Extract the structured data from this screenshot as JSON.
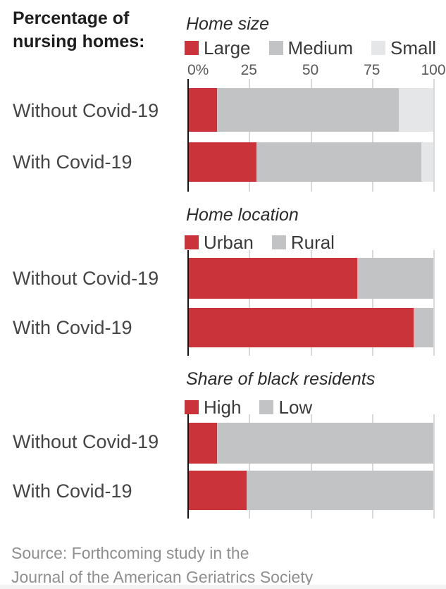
{
  "header": {
    "line1": "Percentage of",
    "line2": "nursing homes:"
  },
  "colors": {
    "red": "#cb333b",
    "medium_gray": "#c2c3c5",
    "light_gray": "#e4e6e8",
    "axis_line": "#141414",
    "gridline": "#d9d9db",
    "title_text": "#1d1d1d",
    "label_text": "#454545",
    "axis_text": "#5a5a5a",
    "source_text": "#8f8f8f"
  },
  "source": {
    "line1": "Source: Forthcoming study in the",
    "line2": "Journal of the American Geriatrics Society"
  },
  "chart_data": [
    {
      "type": "bar",
      "stacked": true,
      "orientation": "horizontal",
      "title": "Home size",
      "categories": [
        "Without Covid-19",
        "With Covid-19"
      ],
      "series": [
        {
          "name": "Large",
          "color": "#cb333b",
          "values": [
            12,
            28
          ]
        },
        {
          "name": "Medium",
          "color": "#c2c3c5",
          "values": [
            74,
            67
          ]
        },
        {
          "name": "Small",
          "color": "#e4e6e8",
          "values": [
            14,
            5
          ]
        }
      ],
      "xlim": [
        0,
        100
      ],
      "x_ticks": [
        0,
        25,
        50,
        75,
        100
      ],
      "x_tick_labels": [
        "0%",
        "25",
        "50",
        "75",
        "100"
      ],
      "legend_position": "top",
      "grid": "vertical-ticks"
    },
    {
      "type": "bar",
      "stacked": true,
      "orientation": "horizontal",
      "title": "Home location",
      "categories": [
        "Without Covid-19",
        "With Covid-19"
      ],
      "series": [
        {
          "name": "Urban",
          "color": "#cb333b",
          "values": [
            69,
            92
          ]
        },
        {
          "name": "Rural",
          "color": "#c2c3c5",
          "values": [
            31,
            8
          ]
        }
      ],
      "xlim": [
        0,
        100
      ],
      "x_ticks": [
        0,
        25,
        50,
        75,
        100
      ],
      "legend_position": "top",
      "grid": "vertical-ticks"
    },
    {
      "type": "bar",
      "stacked": true,
      "orientation": "horizontal",
      "title": "Share of black residents",
      "categories": [
        "Without Covid-19",
        "With Covid-19"
      ],
      "series": [
        {
          "name": "High",
          "color": "#cb333b",
          "values": [
            12,
            24
          ]
        },
        {
          "name": "Low",
          "color": "#c2c3c5",
          "values": [
            88,
            76
          ]
        }
      ],
      "xlim": [
        0,
        100
      ],
      "x_ticks": [
        0,
        25,
        50,
        75,
        100
      ],
      "legend_position": "top",
      "grid": "vertical-ticks"
    }
  ]
}
